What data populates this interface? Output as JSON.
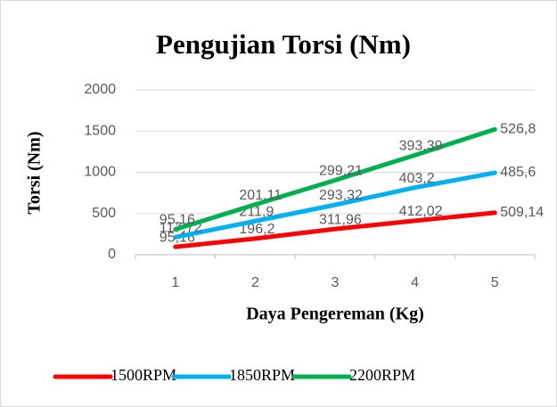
{
  "chart_data": {
    "type": "line",
    "stacked": true,
    "title": "Pengujian Torsi (Nm)",
    "x_label": "Daya Pengereman (Kg)",
    "y_label": "Torsi (Nm)",
    "categories": [
      "1",
      "2",
      "3",
      "4",
      "5"
    ],
    "series": [
      {
        "name": "1500RPM",
        "color": "#ff0000",
        "values": [
          95.16,
          196.2,
          311.96,
          412.02,
          509.14
        ],
        "value_labels": [
          "95,16",
          "196,2",
          "311,96",
          "412,02",
          "509,14"
        ]
      },
      {
        "name": "1850RPM",
        "color": "#00b0f0",
        "values": [
          117.72,
          211.9,
          293.32,
          403.2,
          485.6
        ],
        "value_labels": [
          "117,72",
          "211,9",
          "293,32",
          "403,2",
          "485,6"
        ]
      },
      {
        "name": "2200RPM",
        "color": "#00b050",
        "values": [
          95.16,
          201.11,
          299.21,
          393.39,
          526.8
        ],
        "value_labels": [
          "95,16",
          "201,11",
          "299,21",
          "393,39",
          "526,8"
        ]
      }
    ],
    "ylim": [
      0,
      2000
    ],
    "yticks": [
      0,
      500,
      1000,
      1500,
      2000
    ],
    "grid": true,
    "legend": "bottom"
  }
}
